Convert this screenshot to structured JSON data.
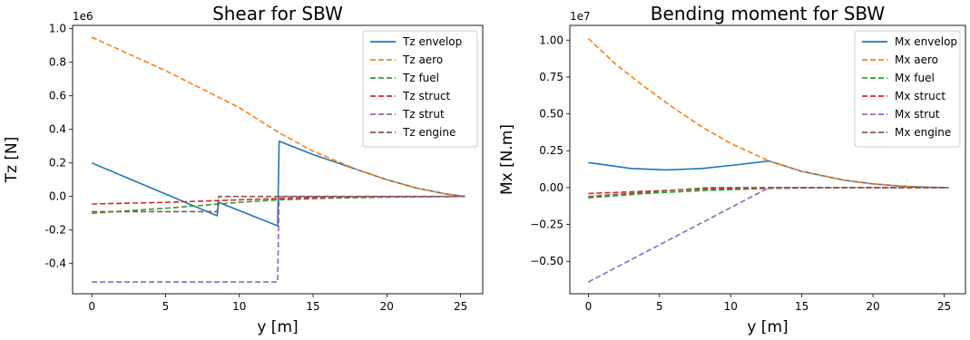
{
  "chart_data": [
    {
      "type": "line",
      "title": "Shear for SBW",
      "xlabel": "y [m]",
      "ylabel": "Tz [N]",
      "y_offset_label": "1e6",
      "xlim": [
        -1.3,
        26.5
      ],
      "ylim": [
        -0.58,
        1.02
      ],
      "x_ticks": [
        0,
        5,
        10,
        15,
        20,
        25
      ],
      "x_tick_labels": [
        "0",
        "5",
        "10",
        "15",
        "20",
        "25"
      ],
      "y_ticks": [
        -0.4,
        -0.2,
        0.0,
        0.2,
        0.4,
        0.6,
        0.8,
        1.0
      ],
      "y_tick_labels": [
        "-0.4",
        "-0.2",
        "0.0",
        "0.2",
        "0.4",
        "0.6",
        "0.8",
        "1.0"
      ],
      "grid": false,
      "legend_position": "top-right",
      "series": [
        {
          "name": "Tz envelop",
          "color": "#1f77b4",
          "dash": "solid",
          "x": [
            0,
            8.5,
            8.6,
            12.6,
            12.7,
            15,
            18,
            20,
            22,
            24,
            25.3
          ],
          "y": [
            0.2,
            -0.115,
            -0.035,
            -0.175,
            0.33,
            0.25,
            0.16,
            0.1,
            0.05,
            0.015,
            0.0
          ]
        },
        {
          "name": "Tz aero",
          "color": "#ff7f0e",
          "dash": "dashed",
          "x": [
            0,
            5,
            10,
            12.7,
            15,
            18,
            20,
            22,
            24,
            25.3
          ],
          "y": [
            0.95,
            0.75,
            0.53,
            0.38,
            0.27,
            0.16,
            0.1,
            0.05,
            0.015,
            0.0
          ]
        },
        {
          "name": "Tz fuel",
          "color": "#2ca02c",
          "dash": "dashed",
          "x": [
            0,
            5,
            10,
            12.7,
            16,
            20,
            25.3
          ],
          "y": [
            -0.1,
            -0.07,
            -0.035,
            -0.02,
            -0.01,
            -0.004,
            0.0
          ]
        },
        {
          "name": "Tz struct",
          "color": "#d62728",
          "dash": "dashed",
          "x": [
            0,
            5,
            10,
            12.7,
            16,
            20,
            25.3
          ],
          "y": [
            -0.045,
            -0.035,
            -0.02,
            -0.012,
            -0.006,
            -0.002,
            0.0
          ]
        },
        {
          "name": "Tz strut",
          "color": "#9467bd",
          "dash": "dashed",
          "x": [
            0,
            12.6,
            12.7,
            25.3
          ],
          "y": [
            -0.51,
            -0.51,
            0.0,
            0.0
          ]
        },
        {
          "name": "Tz engine",
          "color": "#8c564b",
          "dash": "dashed",
          "x": [
            0,
            8.5,
            8.6,
            25.3
          ],
          "y": [
            -0.09,
            -0.09,
            0.0,
            0.0
          ]
        }
      ]
    },
    {
      "type": "line",
      "title": "Bending moment for SBW",
      "xlabel": "y [m]",
      "ylabel": "Mx [N.m]",
      "y_offset_label": "1e7",
      "xlim": [
        -1.3,
        26.5
      ],
      "ylim": [
        -0.72,
        1.1
      ],
      "x_ticks": [
        0,
        5,
        10,
        15,
        20,
        25
      ],
      "x_tick_labels": [
        "0",
        "5",
        "10",
        "15",
        "20",
        "25"
      ],
      "y_ticks": [
        -0.5,
        -0.25,
        0.0,
        0.25,
        0.5,
        0.75,
        1.0
      ],
      "y_tick_labels": [
        "−0.50",
        "−0.25",
        "0.00",
        "0.25",
        "0.50",
        "0.75",
        "1.00"
      ],
      "grid": false,
      "legend_position": "top-right",
      "series": [
        {
          "name": "Mx envelop",
          "color": "#1f77b4",
          "dash": "solid",
          "x": [
            0,
            3,
            5.5,
            8,
            10,
            12.7,
            15,
            18,
            20,
            22,
            24,
            25.3
          ],
          "y": [
            0.17,
            0.13,
            0.12,
            0.13,
            0.15,
            0.18,
            0.11,
            0.05,
            0.025,
            0.01,
            0.002,
            0.0
          ]
        },
        {
          "name": "Mx aero",
          "color": "#ff7f0e",
          "dash": "dashed",
          "x": [
            0,
            2,
            4,
            6,
            8,
            10,
            12.7,
            15,
            18,
            20,
            22,
            24,
            25.3
          ],
          "y": [
            1.01,
            0.83,
            0.68,
            0.54,
            0.41,
            0.3,
            0.18,
            0.11,
            0.05,
            0.025,
            0.01,
            0.002,
            0.0
          ]
        },
        {
          "name": "Mx fuel",
          "color": "#2ca02c",
          "dash": "dashed",
          "x": [
            0,
            4,
            8,
            12.7,
            18,
            25.3
          ],
          "y": [
            -0.07,
            -0.04,
            -0.02,
            -0.005,
            0.0,
            0.0
          ]
        },
        {
          "name": "Mx struct",
          "color": "#d62728",
          "dash": "dashed",
          "x": [
            0,
            4,
            8,
            12.7,
            18,
            25.3
          ],
          "y": [
            -0.04,
            -0.025,
            -0.01,
            -0.003,
            0.0,
            0.0
          ]
        },
        {
          "name": "Mx strut",
          "color": "#9467bd",
          "dash": "dashed",
          "x": [
            0,
            12.7,
            25.3
          ],
          "y": [
            -0.64,
            0.0,
            0.0
          ]
        },
        {
          "name": "Mx engine",
          "color": "#8c564b",
          "dash": "dashed",
          "x": [
            0,
            8.5,
            12.7,
            25.3
          ],
          "y": [
            -0.06,
            0.0,
            0.0,
            0.0
          ]
        }
      ]
    }
  ]
}
